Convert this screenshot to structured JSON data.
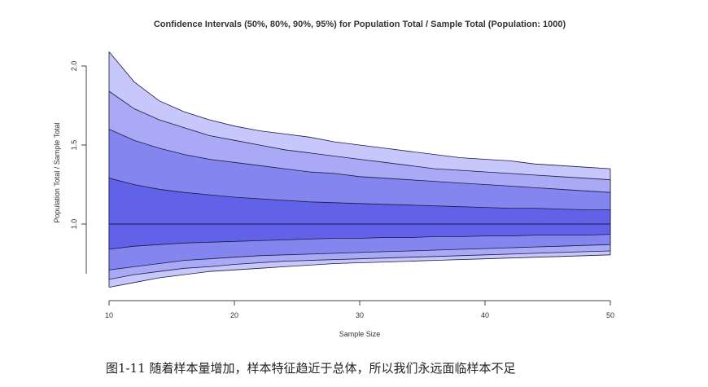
{
  "caption": "图1-11 随着样本量增加，样本特征趋近于总体，所以我们永远面临样本不足",
  "colors": {
    "band_95": "#c7c7fb",
    "band_90": "#a9a9f5",
    "band_80": "#8585ef",
    "band_50": "#6262e8",
    "line": "#1a1a40"
  },
  "chart_data": {
    "type": "area",
    "title": "Confidence Intervals (50%, 80%, 90%, 95%) for Population Total / Sample Total (Population: 1000)",
    "xlabel": "Sample Size",
    "ylabel": "Population Total / Sample Total",
    "xlim": [
      10,
      50
    ],
    "ylim": [
      0.6,
      2.1
    ],
    "x_ticks": [
      10,
      20,
      30,
      40,
      50
    ],
    "x_tick_labels": [
      "10",
      "20",
      "30",
      "40",
      "50"
    ],
    "y_ticks": [
      1.0,
      1.5,
      2.0
    ],
    "y_tick_labels": [
      "1.0",
      "1.5",
      "2.0"
    ],
    "x": [
      10,
      12,
      14,
      16,
      18,
      20,
      22,
      24,
      26,
      28,
      30,
      32,
      34,
      36,
      38,
      40,
      42,
      44,
      46,
      48,
      50
    ],
    "median": [
      1.0,
      1.0,
      1.0,
      1.0,
      1.0,
      1.0,
      1.0,
      1.0,
      1.0,
      1.0,
      1.0,
      1.0,
      1.0,
      1.0,
      1.0,
      1.0,
      1.0,
      1.0,
      1.0,
      1.0,
      1.0
    ],
    "intervals": [
      {
        "level": "95%",
        "upper": [
          2.09,
          1.9,
          1.78,
          1.71,
          1.66,
          1.62,
          1.59,
          1.57,
          1.55,
          1.52,
          1.5,
          1.48,
          1.46,
          1.44,
          1.42,
          1.41,
          1.4,
          1.38,
          1.37,
          1.36,
          1.35
        ],
        "lower": [
          0.6,
          0.63,
          0.66,
          0.68,
          0.7,
          0.71,
          0.72,
          0.73,
          0.74,
          0.75,
          0.755,
          0.76,
          0.765,
          0.77,
          0.775,
          0.78,
          0.785,
          0.79,
          0.795,
          0.8,
          0.805
        ]
      },
      {
        "level": "90%",
        "upper": [
          1.84,
          1.73,
          1.66,
          1.61,
          1.56,
          1.53,
          1.5,
          1.47,
          1.45,
          1.43,
          1.41,
          1.39,
          1.37,
          1.35,
          1.34,
          1.33,
          1.32,
          1.31,
          1.3,
          1.29,
          1.28
        ],
        "lower": [
          0.65,
          0.68,
          0.7,
          0.72,
          0.73,
          0.745,
          0.755,
          0.765,
          0.77,
          0.775,
          0.78,
          0.785,
          0.79,
          0.795,
          0.8,
          0.805,
          0.81,
          0.815,
          0.82,
          0.825,
          0.83
        ]
      },
      {
        "level": "80%",
        "upper": [
          1.6,
          1.53,
          1.48,
          1.44,
          1.41,
          1.39,
          1.37,
          1.35,
          1.33,
          1.32,
          1.3,
          1.29,
          1.28,
          1.27,
          1.26,
          1.25,
          1.24,
          1.23,
          1.22,
          1.21,
          1.2
        ],
        "lower": [
          0.71,
          0.73,
          0.75,
          0.77,
          0.78,
          0.79,
          0.8,
          0.805,
          0.81,
          0.815,
          0.82,
          0.825,
          0.83,
          0.835,
          0.84,
          0.845,
          0.85,
          0.855,
          0.86,
          0.865,
          0.87
        ]
      },
      {
        "level": "50%",
        "upper": [
          1.29,
          1.25,
          1.22,
          1.2,
          1.185,
          1.17,
          1.16,
          1.15,
          1.14,
          1.135,
          1.13,
          1.125,
          1.12,
          1.115,
          1.11,
          1.105,
          1.1,
          1.1,
          1.095,
          1.09,
          1.09
        ],
        "lower": [
          0.84,
          0.86,
          0.87,
          0.88,
          0.885,
          0.89,
          0.895,
          0.9,
          0.905,
          0.91,
          0.91,
          0.915,
          0.915,
          0.92,
          0.92,
          0.925,
          0.925,
          0.93,
          0.93,
          0.93,
          0.935
        ]
      }
    ],
    "grid": false,
    "legend": false
  }
}
